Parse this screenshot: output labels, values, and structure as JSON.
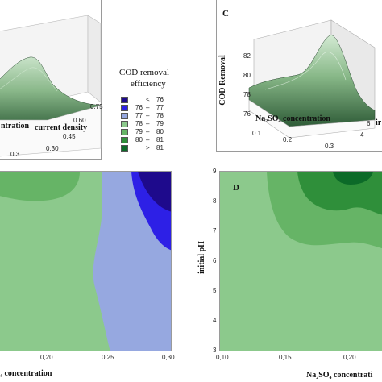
{
  "colors": {
    "band_lt76": "#1e0a8c",
    "band_76_77": "#2d20e6",
    "band_77_78": "#96a8e0",
    "band_78_79": "#8cc98c",
    "band_79_80": "#66b466",
    "band_80_81": "#2f8f3a",
    "band_gt81": "#0c6a28",
    "surface": "#9ec79e"
  },
  "panel_a": {
    "axis_label_left": "ntration",
    "axis_label_right": "current density",
    "ticks_density": [
      "0.75",
      "0.60",
      "0.45",
      "0.30"
    ],
    "tick_bottom": "0.3"
  },
  "legend": {
    "title_line1": "COD removal",
    "title_line2": "efficiency",
    "rows": [
      {
        "a": "",
        "dash": "<",
        "b": "76"
      },
      {
        "a": "76",
        "dash": "–",
        "b": "77"
      },
      {
        "a": "77",
        "dash": "–",
        "b": "78"
      },
      {
        "a": "78",
        "dash": "–",
        "b": "79"
      },
      {
        "a": "79",
        "dash": "–",
        "b": "80"
      },
      {
        "a": "80",
        "dash": "–",
        "b": "81"
      },
      {
        "a": "",
        "dash": ">",
        "b": "81"
      }
    ]
  },
  "panel_c": {
    "letter": "C",
    "zlabel": "COD Removal",
    "zticks": [
      "82",
      "80",
      "78",
      "76"
    ],
    "xlabel": "Na₂SO₄ concentration",
    "xticks": [
      "0.1",
      "0.2",
      "0.3"
    ],
    "yticks": [
      "4",
      "6"
    ],
    "ylabel_partial": "ir"
  },
  "panel_b": {
    "xticks": [
      "0,20",
      "0,25",
      "0,30"
    ],
    "xlabel": "₄ concentration"
  },
  "panel_d": {
    "letter": "D",
    "ylabel": "initial pH",
    "yticks": [
      "9",
      "8",
      "7",
      "6",
      "5",
      "4",
      "3"
    ],
    "xticks": [
      "0,10",
      "0,15",
      "0,20"
    ],
    "xlabel": "Na₂SO₄ concentrati"
  }
}
